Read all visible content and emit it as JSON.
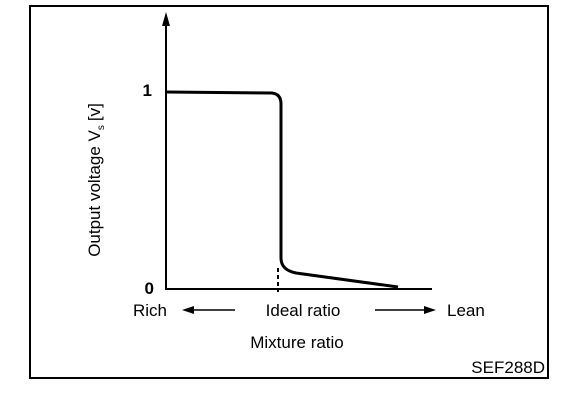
{
  "axis": {
    "y_label": "Output voltage V",
    "y_label_subscript": "s",
    "y_label_unit": "[v]",
    "y_high": "1",
    "y_low": "0"
  },
  "x_axis": {
    "left": "Rich",
    "center": "Ideal ratio",
    "right": "Lean",
    "title": "Mixture ratio"
  },
  "figure_code": "SEF288D"
}
